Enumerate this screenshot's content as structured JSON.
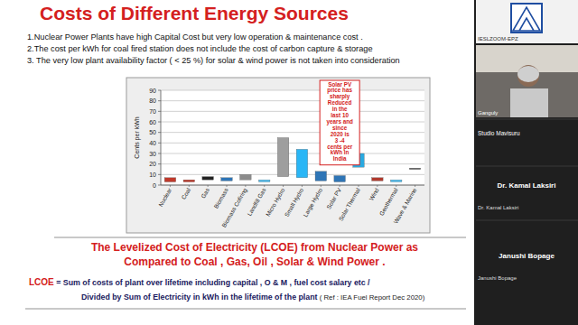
{
  "slide": {
    "title": "Costs of Different Energy Sources",
    "bullets": [
      "1.Nuclear Power Plants have high Capital Cost but very low  operation & maintenance cost .",
      "2.The cost per kWh for coal fired station does not include the cost of carbon capture & storage",
      "3. The very low plant availability factor ( < 25 %) for solar & wind power is not taken into consideration"
    ],
    "footer": {
      "heading_lines": [
        "The Levelized  Cost of Electricity (LCOE) from Nuclear Power  as",
        "Compared to  Coal , Gas, Oil , Solar & Wind  Power ."
      ],
      "definition_term": "LCOE",
      "definition_lines": [
        "  = Sum of costs of plant over lifetime including capital , O & M , fuel cost salary etc /",
        "Divided  by Sum of Electricity in  kWh in the lifetime of the plant"
      ],
      "reference": "  ( Ref : IEA Fuel Report Dec 2020)"
    }
  },
  "chart_data": {
    "type": "range_bar",
    "y_label": "Cents per kWh",
    "categories": [
      "Nuclear",
      "Coal",
      "Gas",
      "Biomass",
      "Biomass Cofiring",
      "Landfill Gas",
      "Micro Hydro",
      "Small Hydro",
      "Large Hydro",
      "Solar PV",
      "Solar Thermal",
      "Wind",
      "Geothermal",
      "Wave & Marine"
    ],
    "values": [
      [
        3,
        7
      ],
      [
        3,
        5
      ],
      [
        5,
        8
      ],
      [
        4,
        7
      ],
      [
        5,
        10
      ],
      [
        3,
        5
      ],
      [
        8,
        45
      ],
      [
        7,
        34
      ],
      [
        4,
        13
      ],
      [
        3,
        9
      ],
      [
        17,
        30
      ],
      [
        4,
        7
      ],
      [
        3,
        5
      ],
      [
        15,
        16
      ]
    ],
    "colors": [
      "#c0392b",
      "#c0392b",
      "#222222",
      "#2e75b6",
      "#8c8c8c",
      "#4fc3f7",
      "#9e9e9e",
      "#29b6f6",
      "#2e75b6",
      "#2e75b6",
      "#29a9e0",
      "#b03a2e",
      "#4fc3f7",
      "#333333"
    ],
    "ylim": [
      0,
      90
    ],
    "yticks": [
      0,
      10,
      20,
      30,
      40,
      50,
      60,
      70,
      80,
      90
    ],
    "grid": true,
    "annotation": {
      "category": "Solar PV",
      "lines": [
        "Solar PV",
        "price has",
        "sharply",
        "Reduced",
        "in the",
        "last 10",
        "years and",
        "since",
        "2020 is",
        "3 -4",
        "cents per",
        "kWh  in",
        "India"
      ]
    }
  },
  "sidebar": {
    "tiles": [
      {
        "label": "IESLZOOM-EPZ"
      },
      {
        "label": "Ganguly"
      },
      {
        "label": "Studio Mavisuru"
      },
      {
        "label": "Dr. Kamal Laksiri",
        "caption": "Dr. Kamal Laksiri"
      },
      {
        "label": "Janushi Bopage",
        "caption": "Janushi Bopage"
      }
    ]
  }
}
